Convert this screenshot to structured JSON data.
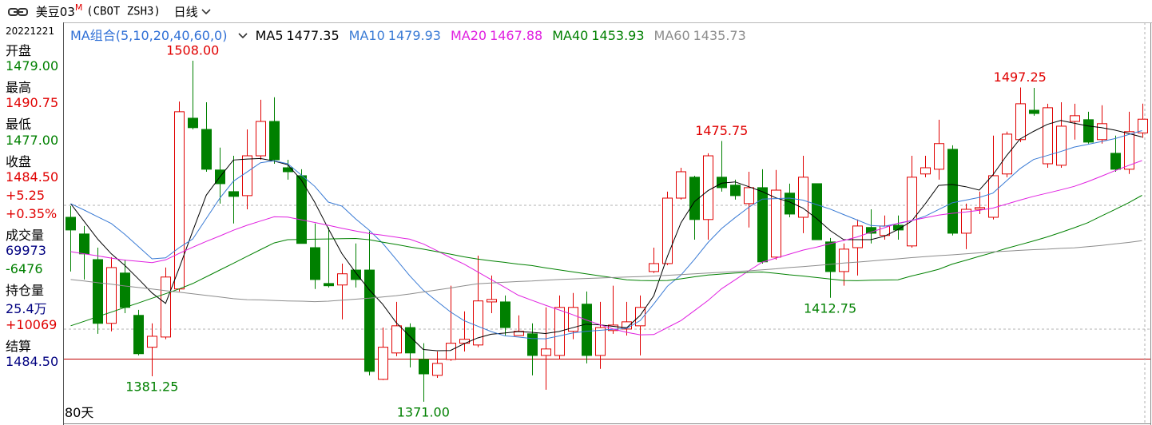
{
  "header": {
    "symbol": "美豆03",
    "badge": "M",
    "code": "(CBOT ZSH3)",
    "period": "日线"
  },
  "info_panel": {
    "date": "20221221",
    "rows": [
      {
        "text": "开盘",
        "color": "#000000"
      },
      {
        "text": "1479.00",
        "color": "#008000"
      },
      {
        "text": "最高",
        "color": "#000000"
      },
      {
        "text": "1490.75",
        "color": "#e00000"
      },
      {
        "text": "最低",
        "color": "#000000"
      },
      {
        "text": "1477.00",
        "color": "#008000"
      },
      {
        "text": "收盘",
        "color": "#000000"
      },
      {
        "text": "1484.50",
        "color": "#e00000"
      },
      {
        "text": "+5.25",
        "color": "#e00000"
      },
      {
        "text": "+0.35%",
        "color": "#e00000"
      },
      {
        "text": "成交量",
        "color": "#000000"
      },
      {
        "text": "69973",
        "color": "#000080"
      },
      {
        "text": "-6476",
        "color": "#008000"
      },
      {
        "text": "持仓量",
        "color": "#000000"
      },
      {
        "text": "25.4万",
        "color": "#000080"
      },
      {
        "text": "+10069",
        "color": "#e00000"
      },
      {
        "text": "结算",
        "color": "#000000"
      },
      {
        "text": "1484.50",
        "color": "#000080"
      }
    ]
  },
  "chart_data": {
    "type": "candlestick",
    "ylim": [
      1362.3,
      1523.4
    ],
    "up_color": "#e00000",
    "down_color": "#008000",
    "group_label": "MA组合(5,10,20,40,60,0)",
    "group_color": "#2f6fd6",
    "period_label": "80天",
    "candles": {
      "open": [
        1445.1,
        1438.4,
        1428.1,
        1402.5,
        1422.7,
        1405.7,
        1392.9,
        1397.0,
        1416.3,
        1484.9,
        1480.4,
        1464.1,
        1455.4,
        1453.8,
        1469.8,
        1483.6,
        1465.0,
        1461.8,
        1432.9,
        1418.5,
        1417.9,
        1423.9,
        1423.9,
        1380.0,
        1390.6,
        1400.8,
        1388.0,
        1381.6,
        1388.0,
        1394.5,
        1393.8,
        1411.1,
        1411.1,
        1397.6,
        1398.3,
        1389.6,
        1389.6,
        1399.3,
        1410.2,
        1389.6,
        1399.6,
        1400.2,
        1401.5,
        1423.3,
        1426.5,
        1452.8,
        1461.2,
        1444.2,
        1461.2,
        1458.0,
        1450.6,
        1457.0,
        1429.1,
        1454.8,
        1445.1,
        1458.6,
        1435.2,
        1423.3,
        1432.9,
        1441.0,
        1437.8,
        1441.9,
        1433.6,
        1462.5,
        1464.4,
        1472.4,
        1438.7,
        1448.3,
        1445.1,
        1462.5,
        1476.3,
        1488.1,
        1466.6,
        1466.0,
        1483.6,
        1484.3,
        1476.3,
        1470.8,
        1464.4,
        1479.0
      ],
      "high": [
        1449.6,
        1441.6,
        1432.9,
        1429.1,
        1428.1,
        1407.9,
        1402.5,
        1424.9,
        1491.6,
        1508.0,
        1491.3,
        1473.1,
        1469.8,
        1480.4,
        1492.3,
        1493.3,
        1468.2,
        1464.4,
        1442.6,
        1441.0,
        1426.5,
        1434.6,
        1439.4,
        1400.8,
        1411.1,
        1402.5,
        1394.5,
        1391.2,
        1417.6,
        1407.3,
        1429.7,
        1421.7,
        1413.7,
        1405.7,
        1402.5,
        1408.9,
        1413.7,
        1414.7,
        1415.3,
        1411.1,
        1417.6,
        1411.1,
        1413.7,
        1432.9,
        1455.4,
        1465.0,
        1461.8,
        1470.8,
        1475.75,
        1460.2,
        1463.4,
        1464.4,
        1464.1,
        1458.6,
        1469.8,
        1458.6,
        1436.8,
        1434.6,
        1444.2,
        1448.3,
        1445.8,
        1445.8,
        1469.8,
        1469.8,
        1484.3,
        1474.0,
        1450.6,
        1455.4,
        1477.9,
        1479.5,
        1497.25,
        1497.1,
        1490.7,
        1491.3,
        1490.7,
        1487.5,
        1490.1,
        1477.9,
        1487.5,
        1490.75
      ],
      "low": [
        1423.3,
        1420.1,
        1398.3,
        1399.3,
        1406.6,
        1389.6,
        1381.25,
        1396.1,
        1415.3,
        1480.4,
        1463.4,
        1450.6,
        1442.6,
        1448.3,
        1468.2,
        1466.6,
        1460.2,
        1434.6,
        1416.3,
        1416.9,
        1404.1,
        1416.9,
        1381.6,
        1379.7,
        1389.3,
        1384.8,
        1371.0,
        1380.6,
        1387.4,
        1391.2,
        1392.9,
        1406.6,
        1397.6,
        1397.6,
        1381.6,
        1375.8,
        1388.0,
        1396.1,
        1386.4,
        1384.2,
        1398.3,
        1397.6,
        1389.6,
        1422.7,
        1425.9,
        1452.2,
        1436.1,
        1436.1,
        1455.4,
        1452.2,
        1441.0,
        1426.5,
        1428.1,
        1445.1,
        1438.7,
        1436.1,
        1412.75,
        1417.6,
        1421.7,
        1434.6,
        1436.1,
        1436.1,
        1432.9,
        1461.2,
        1460.2,
        1437.8,
        1432.3,
        1446.4,
        1444.2,
        1461.2,
        1475.3,
        1485.9,
        1465.0,
        1465.0,
        1476.3,
        1474.7,
        1474.7,
        1463.4,
        1462.5,
        1477.0
      ],
      "close": [
        1440.0,
        1430.4,
        1402.5,
        1424.9,
        1408.9,
        1390.3,
        1397.3,
        1421.1,
        1487.5,
        1481.1,
        1464.4,
        1458.6,
        1453.5,
        1469.8,
        1483.6,
        1468.2,
        1463.4,
        1434.6,
        1420.1,
        1417.6,
        1422.4,
        1420.1,
        1383.2,
        1392.9,
        1401.5,
        1390.6,
        1382.2,
        1386.4,
        1394.5,
        1396.1,
        1411.5,
        1412.1,
        1400.8,
        1399.3,
        1389.6,
        1392.2,
        1408.9,
        1408.9,
        1389.6,
        1400.8,
        1401.8,
        1403.1,
        1408.9,
        1426.5,
        1452.8,
        1463.4,
        1444.2,
        1469.8,
        1457.0,
        1453.8,
        1457.0,
        1427.2,
        1456.0,
        1446.4,
        1461.2,
        1436.1,
        1423.3,
        1432.3,
        1441.6,
        1438.7,
        1441.6,
        1440.0,
        1461.2,
        1465.0,
        1474.7,
        1438.7,
        1448.3,
        1449.0,
        1461.8,
        1478.5,
        1490.7,
        1486.8,
        1489.1,
        1481.7,
        1485.9,
        1475.3,
        1482.7,
        1464.4,
        1479.5,
        1484.5
      ]
    },
    "series": [
      {
        "name": "MA5",
        "color": "#000000",
        "values": [
          1450.6,
          1443.4,
          1436.3,
          1430.4,
          1425.7,
          1420.3,
          1414.7,
          1410.5,
          1424.7,
          1439.6,
          1454.0,
          1461.3,
          1468.1,
          1468.5,
          1468.7,
          1467.7,
          1466.2,
          1460.1,
          1451.1,
          1440.5,
          1430.5,
          1423.0,
          1416.1,
          1410.2,
          1402.8,
          1397.3,
          1392.0,
          1391.5,
          1391.6,
          1394.3,
          1396.6,
          1398.1,
          1398.6,
          1399.2,
          1398.9,
          1398.4,
          1399.2,
          1400.7,
          1402.2,
          1401.9,
          1401.3,
          1400.7,
          1405.7,
          1413.6,
          1429.4,
          1442.9,
          1451.4,
          1455.8,
          1458.8,
          1459.3,
          1457.4,
          1455.4,
          1452.9,
          1451.3,
          1448.8,
          1444.6,
          1439.8,
          1436.1,
          1436.1,
          1436.1,
          1437.5,
          1440.2,
          1443.5,
          1450.4,
          1457.9,
          1458.3,
          1457.4,
          1456.0,
          1462.1,
          1469.8,
          1476.5,
          1479.6,
          1482.4,
          1484.0,
          1482.9,
          1481.8,
          1481.1,
          1480.1,
          1478.8,
          1477.35
        ]
      },
      {
        "name": "MA10",
        "color": "#3a7bd5",
        "values": [
          1450.6,
          1448.0,
          1445.3,
          1442.6,
          1438.2,
          1433.3,
          1428.4,
          1428.8,
          1432.9,
          1436.4,
          1444.6,
          1452.8,
          1459.6,
          1463.3,
          1467.0,
          1467.8,
          1466.6,
          1462.1,
          1457.5,
          1451.2,
          1449.6,
          1444.5,
          1440.0,
          1434.7,
          1428.2,
          1421.6,
          1415.8,
          1411.4,
          1407.1,
          1403.6,
          1401.4,
          1399.2,
          1397.5,
          1397.0,
          1396.4,
          1396.3,
          1397.4,
          1398.6,
          1399.3,
          1399.7,
          1400.1,
          1400.5,
          1403.6,
          1410.3,
          1417.4,
          1421.9,
          1428.2,
          1435.0,
          1440.6,
          1445.0,
          1449.1,
          1452.4,
          1452.6,
          1452.8,
          1452.0,
          1450.2,
          1448.4,
          1446.2,
          1444.0,
          1441.8,
          1441.5,
          1442.6,
          1443.7,
          1445.5,
          1448.2,
          1450.9,
          1452.0,
          1453.1,
          1454.8,
          1459.7,
          1464.6,
          1468.3,
          1469.9,
          1471.5,
          1473.3,
          1474.4,
          1475.5,
          1476.7,
          1478.3,
          1479.93
        ]
      },
      {
        "name": "MA20",
        "color": "#e020e0",
        "values": [
          1431.3,
          1430.4,
          1429.6,
          1428.7,
          1427.9,
          1427.4,
          1426.9,
          1428.0,
          1430.6,
          1433.1,
          1435.4,
          1437.6,
          1439.9,
          1441.9,
          1443.6,
          1445.3,
          1445.2,
          1444.1,
          1443.0,
          1441.9,
          1440.7,
          1439.6,
          1438.6,
          1437.9,
          1437.1,
          1436.3,
          1434.4,
          1431.7,
          1428.9,
          1426.3,
          1423.2,
          1420.1,
          1417.0,
          1413.8,
          1411.8,
          1409.8,
          1407.9,
          1406.0,
          1403.9,
          1402.0,
          1400.2,
          1398.9,
          1397.9,
          1398.0,
          1400.8,
          1403.6,
          1407.6,
          1411.7,
          1416.4,
          1420.0,
          1423.6,
          1427.1,
          1428.7,
          1430.3,
          1431.9,
          1433.1,
          1434.5,
          1435.8,
          1437.2,
          1439.1,
          1440.9,
          1442.7,
          1443.8,
          1444.9,
          1446.0,
          1446.7,
          1447.2,
          1447.9,
          1448.8,
          1450.4,
          1452.0,
          1453.5,
          1454.8,
          1456.1,
          1457.5,
          1459.4,
          1461.6,
          1463.8,
          1465.9,
          1467.88
        ]
      },
      {
        "name": "MA40",
        "color": "#008000",
        "values": [
          1401.5,
          1403.3,
          1405.2,
          1407.0,
          1408.9,
          1410.7,
          1412.6,
          1414.4,
          1416.3,
          1418.5,
          1421.2,
          1423.9,
          1426.6,
          1429.4,
          1432.1,
          1434.8,
          1436.1,
          1436.2,
          1436.3,
          1436.4,
          1436.5,
          1436.6,
          1436.1,
          1435.1,
          1434.2,
          1433.2,
          1432.3,
          1431.3,
          1430.3,
          1429.2,
          1428.3,
          1427.6,
          1427.0,
          1426.3,
          1425.7,
          1424.8,
          1424.0,
          1423.2,
          1422.4,
          1421.6,
          1420.8,
          1420.0,
          1419.7,
          1419.6,
          1419.7,
          1420.4,
          1421.2,
          1421.9,
          1422.3,
          1422.7,
          1423.0,
          1423.1,
          1422.6,
          1422.0,
          1421.5,
          1420.9,
          1420.3,
          1419.7,
          1419.6,
          1419.8,
          1419.9,
          1420.0,
          1421.5,
          1422.8,
          1424.2,
          1426.3,
          1427.8,
          1429.4,
          1430.9,
          1432.6,
          1434.1,
          1435.6,
          1437.2,
          1439.0,
          1440.9,
          1442.9,
          1445.6,
          1448.2,
          1450.9,
          1453.93
        ]
      },
      {
        "name": "MA60",
        "color": "#8c8c8c",
        "values": [
          1420.1,
          1419.5,
          1418.8,
          1418.2,
          1417.5,
          1416.9,
          1416.3,
          1415.6,
          1415.0,
          1414.4,
          1413.7,
          1413.1,
          1412.4,
          1412.0,
          1411.9,
          1411.7,
          1411.5,
          1411.4,
          1411.2,
          1411.4,
          1411.8,
          1412.2,
          1412.6,
          1413.1,
          1413.6,
          1414.3,
          1415.1,
          1415.9,
          1416.7,
          1417.6,
          1418.4,
          1418.7,
          1419.0,
          1419.3,
          1419.5,
          1419.8,
          1420.1,
          1420.3,
          1420.5,
          1420.7,
          1420.9,
          1421.1,
          1421.3,
          1421.5,
          1421.8,
          1422.1,
          1422.4,
          1422.7,
          1423.0,
          1423.3,
          1423.6,
          1424.0,
          1424.4,
          1424.9,
          1425.3,
          1425.7,
          1426.2,
          1426.7,
          1427.1,
          1427.5,
          1428.0,
          1428.4,
          1428.9,
          1429.3,
          1429.7,
          1430.0,
          1430.4,
          1430.8,
          1431.2,
          1431.5,
          1431.8,
          1432.1,
          1432.3,
          1432.6,
          1432.8,
          1433.3,
          1433.8,
          1434.4,
          1435.0,
          1435.73
        ]
      }
    ],
    "annotations": [
      {
        "value": 1508,
        "label": "1508.00",
        "color": "#e00000"
      },
      {
        "value": 1381.25,
        "label": "1381.25",
        "color": "#008000"
      },
      {
        "value": 1371,
        "label": "1371.00",
        "color": "#008000"
      },
      {
        "value": 1475.75,
        "label": "1475.75",
        "color": "#e00000"
      },
      {
        "value": 1412.75,
        "label": "1412.75",
        "color": "#008000"
      },
      {
        "value": 1497.25,
        "label": "1497.25",
        "color": "#e00000"
      }
    ]
  }
}
